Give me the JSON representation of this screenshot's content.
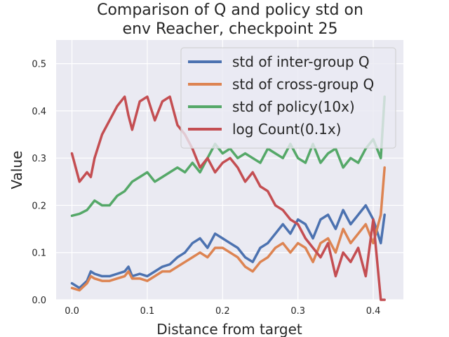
{
  "chart_data": {
    "type": "line",
    "title": [
      "Comparison of Q and policy std on",
      "env Reacher, checkpoint 25"
    ],
    "xlabel": "Distance from target",
    "ylabel": "Value",
    "xlim": [
      -0.021,
      0.44
    ],
    "ylim": [
      0.0,
      0.55
    ],
    "xticks": [
      0.0,
      0.1,
      0.2,
      0.3,
      0.4
    ],
    "xtick_labels": [
      "0.0",
      "0.1",
      "0.2",
      "0.3",
      "0.4"
    ],
    "yticks": [
      0.0,
      0.1,
      0.2,
      0.3,
      0.4,
      0.5
    ],
    "ytick_labels": [
      "0.0",
      "0.1",
      "0.2",
      "0.3",
      "0.4",
      "0.5"
    ],
    "grid": true,
    "legend_position": "top-right",
    "series": [
      {
        "name": "std of inter-group Q",
        "color": "#4c72b0",
        "x": [
          0.0,
          0.01,
          0.02,
          0.025,
          0.03,
          0.04,
          0.05,
          0.06,
          0.07,
          0.075,
          0.08,
          0.09,
          0.1,
          0.11,
          0.12,
          0.13,
          0.14,
          0.15,
          0.16,
          0.17,
          0.18,
          0.19,
          0.2,
          0.21,
          0.22,
          0.23,
          0.24,
          0.25,
          0.26,
          0.27,
          0.28,
          0.29,
          0.3,
          0.31,
          0.32,
          0.33,
          0.34,
          0.35,
          0.36,
          0.37,
          0.38,
          0.39,
          0.4,
          0.41,
          0.415
        ],
        "y": [
          0.035,
          0.025,
          0.04,
          0.06,
          0.055,
          0.05,
          0.05,
          0.055,
          0.06,
          0.07,
          0.05,
          0.055,
          0.05,
          0.06,
          0.07,
          0.075,
          0.09,
          0.1,
          0.12,
          0.13,
          0.11,
          0.14,
          0.13,
          0.12,
          0.11,
          0.09,
          0.08,
          0.11,
          0.12,
          0.14,
          0.16,
          0.14,
          0.17,
          0.16,
          0.13,
          0.17,
          0.18,
          0.15,
          0.19,
          0.16,
          0.18,
          0.2,
          0.17,
          0.12,
          0.18
        ]
      },
      {
        "name": "std of cross-group Q",
        "color": "#dd8452",
        "x": [
          0.0,
          0.01,
          0.02,
          0.025,
          0.03,
          0.04,
          0.05,
          0.06,
          0.07,
          0.075,
          0.08,
          0.09,
          0.1,
          0.11,
          0.12,
          0.13,
          0.14,
          0.15,
          0.16,
          0.17,
          0.18,
          0.19,
          0.2,
          0.21,
          0.22,
          0.23,
          0.24,
          0.25,
          0.26,
          0.27,
          0.28,
          0.29,
          0.3,
          0.31,
          0.32,
          0.33,
          0.34,
          0.35,
          0.36,
          0.37,
          0.38,
          0.39,
          0.4,
          0.41,
          0.415
        ],
        "y": [
          0.025,
          0.02,
          0.035,
          0.05,
          0.045,
          0.04,
          0.04,
          0.045,
          0.05,
          0.06,
          0.045,
          0.045,
          0.04,
          0.05,
          0.06,
          0.06,
          0.07,
          0.08,
          0.09,
          0.1,
          0.09,
          0.11,
          0.11,
          0.1,
          0.09,
          0.07,
          0.06,
          0.08,
          0.09,
          0.11,
          0.12,
          0.1,
          0.12,
          0.11,
          0.08,
          0.12,
          0.13,
          0.1,
          0.15,
          0.12,
          0.14,
          0.16,
          0.12,
          0.18,
          0.28
        ]
      },
      {
        "name": "std of policy(10x)",
        "color": "#55a868",
        "x": [
          0.0,
          0.01,
          0.02,
          0.025,
          0.03,
          0.04,
          0.05,
          0.06,
          0.07,
          0.075,
          0.08,
          0.09,
          0.1,
          0.11,
          0.12,
          0.13,
          0.14,
          0.15,
          0.16,
          0.17,
          0.18,
          0.19,
          0.2,
          0.21,
          0.22,
          0.23,
          0.24,
          0.25,
          0.26,
          0.27,
          0.28,
          0.29,
          0.3,
          0.31,
          0.32,
          0.33,
          0.34,
          0.35,
          0.36,
          0.37,
          0.38,
          0.39,
          0.4,
          0.41,
          0.415
        ],
        "y": [
          0.178,
          0.182,
          0.19,
          0.2,
          0.21,
          0.2,
          0.2,
          0.22,
          0.23,
          0.24,
          0.25,
          0.26,
          0.27,
          0.25,
          0.26,
          0.27,
          0.28,
          0.27,
          0.29,
          0.27,
          0.3,
          0.33,
          0.31,
          0.32,
          0.3,
          0.31,
          0.3,
          0.29,
          0.32,
          0.31,
          0.3,
          0.33,
          0.3,
          0.29,
          0.33,
          0.29,
          0.31,
          0.32,
          0.28,
          0.3,
          0.29,
          0.32,
          0.34,
          0.3,
          0.43
        ]
      },
      {
        "name": "log Count(0.1x)",
        "color": "#c44e52",
        "x": [
          0.0,
          0.01,
          0.02,
          0.025,
          0.03,
          0.04,
          0.05,
          0.06,
          0.07,
          0.075,
          0.08,
          0.09,
          0.1,
          0.11,
          0.12,
          0.13,
          0.14,
          0.15,
          0.16,
          0.17,
          0.18,
          0.19,
          0.2,
          0.21,
          0.22,
          0.23,
          0.24,
          0.25,
          0.26,
          0.27,
          0.28,
          0.29,
          0.3,
          0.31,
          0.32,
          0.33,
          0.34,
          0.35,
          0.36,
          0.37,
          0.38,
          0.39,
          0.4,
          0.41,
          0.415
        ],
        "y": [
          0.31,
          0.25,
          0.27,
          0.26,
          0.3,
          0.35,
          0.38,
          0.41,
          0.43,
          0.39,
          0.36,
          0.42,
          0.43,
          0.38,
          0.42,
          0.43,
          0.37,
          0.35,
          0.32,
          0.28,
          0.3,
          0.27,
          0.29,
          0.3,
          0.28,
          0.25,
          0.27,
          0.24,
          0.23,
          0.2,
          0.19,
          0.17,
          0.16,
          0.13,
          0.11,
          0.09,
          0.12,
          0.05,
          0.1,
          0.08,
          0.11,
          0.05,
          0.17,
          0.0,
          0.0
        ]
      }
    ]
  }
}
